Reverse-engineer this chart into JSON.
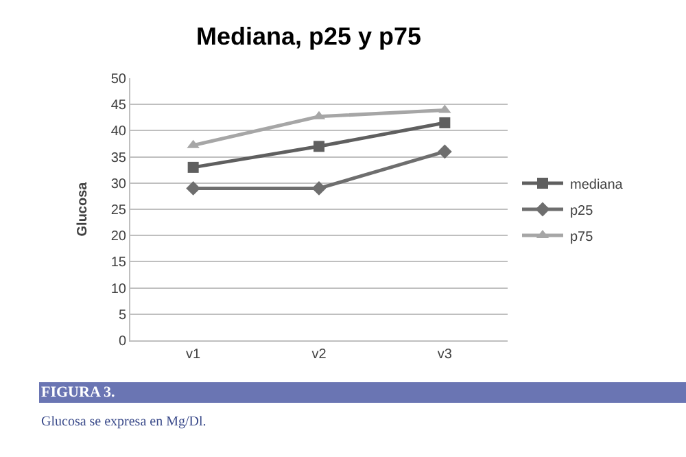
{
  "chart_data": {
    "type": "line",
    "title": "Mediana, p25 y p75",
    "ylabel": "Glucosa",
    "categories": [
      "v1",
      "v2",
      "v3"
    ],
    "series": [
      {
        "name": "mediana",
        "color": "#5f5f5f",
        "marker": "square",
        "values": [
          33,
          37,
          41.5
        ]
      },
      {
        "name": "p25",
        "color": "#6e6e6e",
        "marker": "diamond",
        "values": [
          29,
          29,
          36
        ]
      },
      {
        "name": "p75",
        "color": "#a6a6a6",
        "marker": "triangle",
        "values": [
          37.2,
          42.7,
          43.9
        ]
      }
    ],
    "ylim": [
      0,
      50
    ],
    "yticks": [
      0,
      5,
      10,
      15,
      20,
      25,
      30,
      35,
      40,
      45,
      50
    ],
    "grid": "y",
    "legend": "right",
    "annotations": [
      "FIGURA 3.",
      "Glucosa se expresa en Mg/Dl."
    ]
  }
}
